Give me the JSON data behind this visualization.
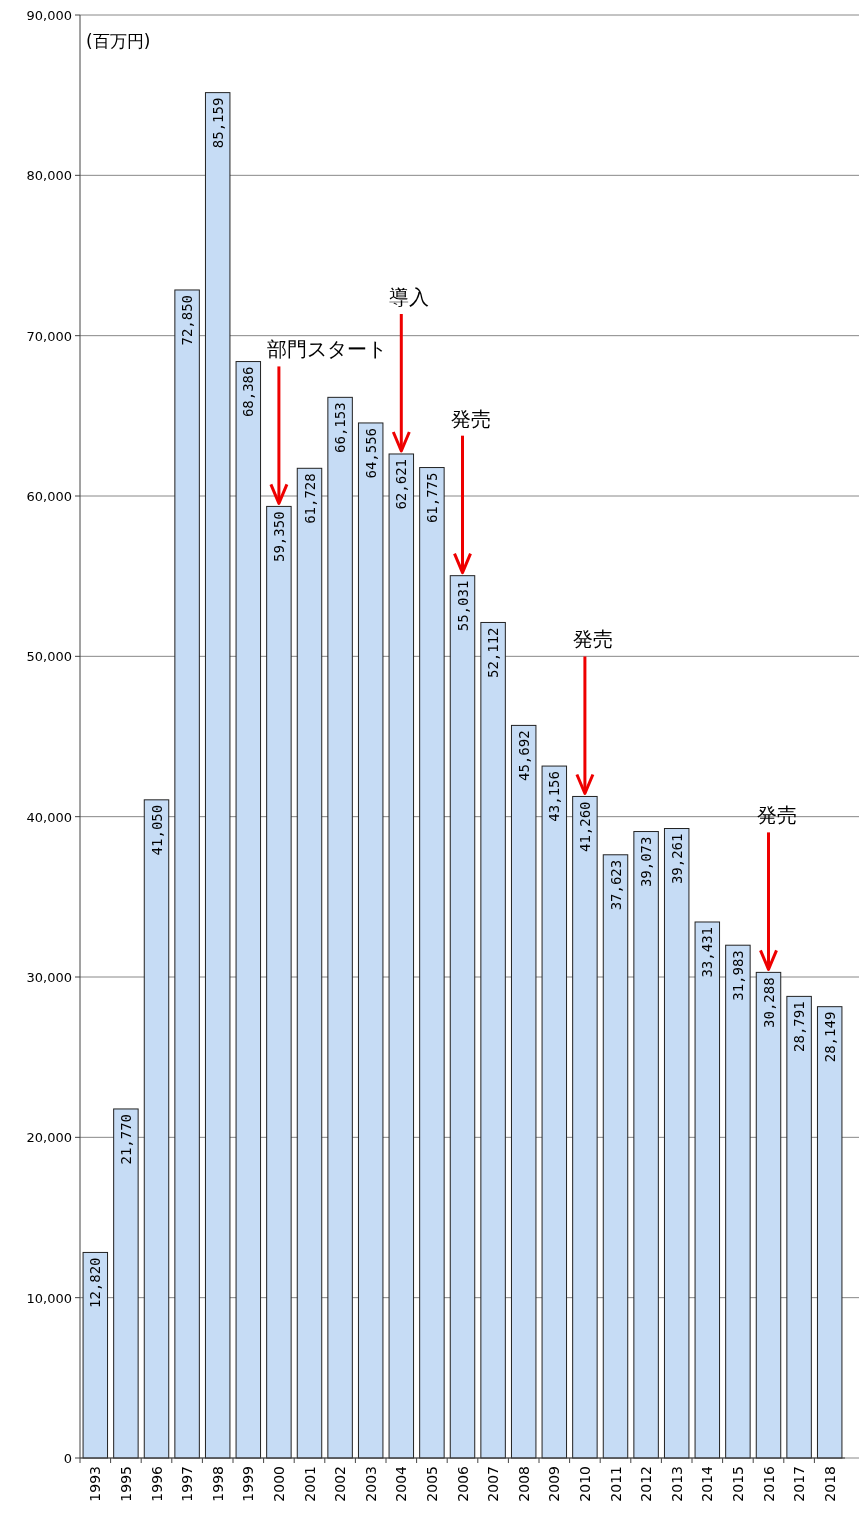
{
  "chart_data": {
    "type": "bar",
    "ylabel": "(百万円)",
    "categories": [
      "1993",
      "1995",
      "1996",
      "1997",
      "1998",
      "1999",
      "2000",
      "2001",
      "2002",
      "2003",
      "2004",
      "2005",
      "2006",
      "2007",
      "2008",
      "2009",
      "2010",
      "2011",
      "2012",
      "2013",
      "2014",
      "2015",
      "2016",
      "2017",
      "2018"
    ],
    "values": [
      12820,
      21770,
      41050,
      72850,
      85159,
      68386,
      59350,
      61728,
      66153,
      64556,
      62621,
      61775,
      55031,
      52112,
      45692,
      43156,
      41260,
      37623,
      39073,
      39261,
      33431,
      31983,
      30288,
      28791,
      28149
    ],
    "color": "#c6dcf5",
    "ylim": [
      0,
      90000
    ],
    "yticks": [
      {
        "value": 0,
        "label": "0"
      },
      {
        "value": 10000,
        "label": "10,000"
      },
      {
        "value": 20000,
        "label": "20,000"
      },
      {
        "value": 30000,
        "label": "30,000"
      },
      {
        "value": 40000,
        "label": "40,000"
      },
      {
        "value": 50000,
        "label": "50,000"
      },
      {
        "value": 60000,
        "label": "60,000"
      },
      {
        "value": 70000,
        "label": "70,000"
      },
      {
        "value": 80000,
        "label": "80,000"
      },
      {
        "value": 90000,
        "label": "90,000"
      }
    ],
    "grid": "y",
    "value_labels": [
      "12,820",
      "21,770",
      "41,050",
      "72,850",
      "85,159",
      "68,386",
      "59,350",
      "61,728",
      "66,153",
      "64,556",
      "62,621",
      "61,775",
      "55,031",
      "52,112",
      "45,692",
      "43,156",
      "41,260",
      "37,623",
      "39,073",
      "39,261",
      "33,431",
      "31,983",
      "30,288",
      "28,791",
      "28,149"
    ],
    "annotations": [
      {
        "text": "部門スタート",
        "x": "2000",
        "y": 59350
      },
      {
        "text": "導入",
        "x": "2004",
        "y": 62621
      },
      {
        "text": "発売",
        "x": "2006",
        "y": 55031
      },
      {
        "text": "発売",
        "x": "2010",
        "y": 41260
      },
      {
        "text": "発売",
        "x": "2016",
        "y": 30288
      }
    ]
  }
}
